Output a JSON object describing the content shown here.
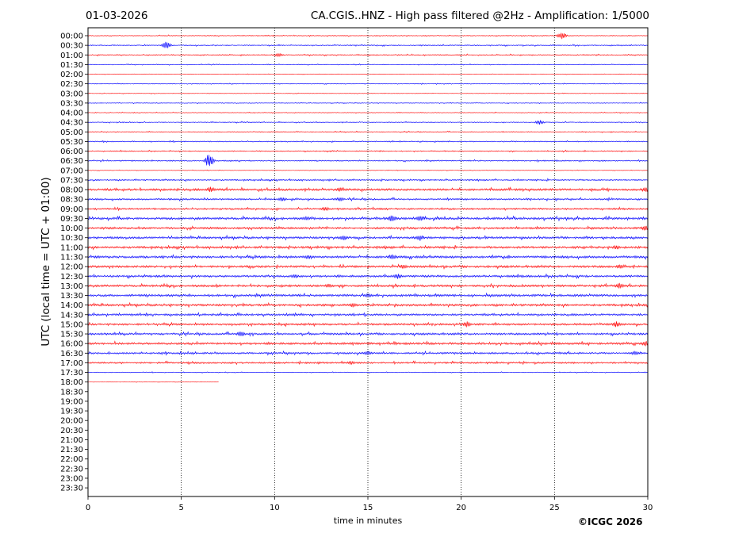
{
  "header": {
    "date": "01-03-2026",
    "title": "CA.CGIS..HNZ - High pass filtered @2Hz - Amplification: 1/5000"
  },
  "footer": {
    "credit": "©ICGC 2026"
  },
  "chart_data": {
    "type": "line",
    "xlabel": "time in minutes",
    "ylabel": "UTC (local time = UTC + 01:00)",
    "xlim": [
      0,
      30
    ],
    "xticks": [
      0,
      5,
      10,
      15,
      20,
      25,
      30
    ],
    "grid": "vertical dotted at 5-minute intervals",
    "rows": [
      "00:00",
      "00:30",
      "01:00",
      "01:30",
      "02:00",
      "02:30",
      "03:00",
      "03:30",
      "04:00",
      "04:30",
      "05:00",
      "05:30",
      "06:00",
      "06:30",
      "07:00",
      "07:30",
      "08:00",
      "08:30",
      "09:00",
      "09:30",
      "10:00",
      "10:30",
      "11:00",
      "11:30",
      "12:00",
      "12:30",
      "13:00",
      "13:30",
      "14:00",
      "14:30",
      "15:00",
      "15:30",
      "16:00",
      "16:30",
      "17:00",
      "17:30",
      "18:00",
      "18:30",
      "19:00",
      "19:30",
      "20:00",
      "20:30",
      "21:00",
      "21:30",
      "22:00",
      "22:30",
      "23:00",
      "23:30"
    ],
    "series_colors": {
      "even_rows": "#ff0000",
      "odd_rows": "#0000ff"
    },
    "last_trace": {
      "row": "18:00",
      "end_minute": 7.0
    },
    "amplitude": [
      0.5,
      0.6,
      0.6,
      0.4,
      0.3,
      0.4,
      0.3,
      0.4,
      0.4,
      0.5,
      0.5,
      0.6,
      0.6,
      0.7,
      0.3,
      0.8,
      1.3,
      1.0,
      1.0,
      1.4,
      1.2,
      1.3,
      1.3,
      1.4,
      1.3,
      1.3,
      1.3,
      1.4,
      1.3,
      1.2,
      1.2,
      1.2,
      1.3,
      1.1,
      1.0,
      0.4,
      0.2
    ],
    "events": [
      {
        "row": "00:00",
        "minute": 25.4,
        "amp": 5
      },
      {
        "row": "00:30",
        "minute": 4.2,
        "amp": 5
      },
      {
        "row": "01:00",
        "minute": 10.2,
        "amp": 2.5
      },
      {
        "row": "04:30",
        "minute": 24.2,
        "amp": 3
      },
      {
        "row": "06:30",
        "minute": 6.5,
        "amp": 10
      },
      {
        "row": "08:00",
        "minute": 6.6,
        "amp": 4
      },
      {
        "row": "08:00",
        "minute": 13.5,
        "amp": 3
      },
      {
        "row": "08:00",
        "minute": 29.9,
        "amp": 4
      },
      {
        "row": "08:30",
        "minute": 10.4,
        "amp": 3
      },
      {
        "row": "08:30",
        "minute": 13.5,
        "amp": 3
      },
      {
        "row": "09:00",
        "minute": 12.7,
        "amp": 3
      },
      {
        "row": "09:30",
        "minute": 16.3,
        "amp": 5
      },
      {
        "row": "09:30",
        "minute": 17.8,
        "amp": 4
      },
      {
        "row": "09:30",
        "minute": 11.7,
        "amp": 3
      },
      {
        "row": "10:00",
        "minute": 29.9,
        "amp": 4
      },
      {
        "row": "10:30",
        "minute": 13.7,
        "amp": 4
      },
      {
        "row": "10:30",
        "minute": 17.8,
        "amp": 4
      },
      {
        "row": "11:00",
        "minute": 28.3,
        "amp": 3
      },
      {
        "row": "11:30",
        "minute": 16.3,
        "amp": 4
      },
      {
        "row": "11:30",
        "minute": 11.8,
        "amp": 3
      },
      {
        "row": "12:00",
        "minute": 16.9,
        "amp": 3
      },
      {
        "row": "12:00",
        "minute": 28.5,
        "amp": 3
      },
      {
        "row": "12:30",
        "minute": 16.6,
        "amp": 4
      },
      {
        "row": "12:30",
        "minute": 11.1,
        "amp": 3
      },
      {
        "row": "13:00",
        "minute": 28.5,
        "amp": 4
      },
      {
        "row": "13:00",
        "minute": 12.9,
        "amp": 3
      },
      {
        "row": "13:30",
        "minute": 15.0,
        "amp": 3
      },
      {
        "row": "14:00",
        "minute": 14.2,
        "amp": 3
      },
      {
        "row": "15:00",
        "minute": 20.3,
        "amp": 4
      },
      {
        "row": "15:00",
        "minute": 28.3,
        "amp": 4
      },
      {
        "row": "15:30",
        "minute": 8.2,
        "amp": 4
      },
      {
        "row": "16:00",
        "minute": 29.9,
        "amp": 4
      },
      {
        "row": "16:30",
        "minute": 15.0,
        "amp": 3
      },
      {
        "row": "16:30",
        "minute": 29.3,
        "amp": 3
      },
      {
        "row": "17:00",
        "minute": 14.1,
        "amp": 2.5
      }
    ]
  }
}
